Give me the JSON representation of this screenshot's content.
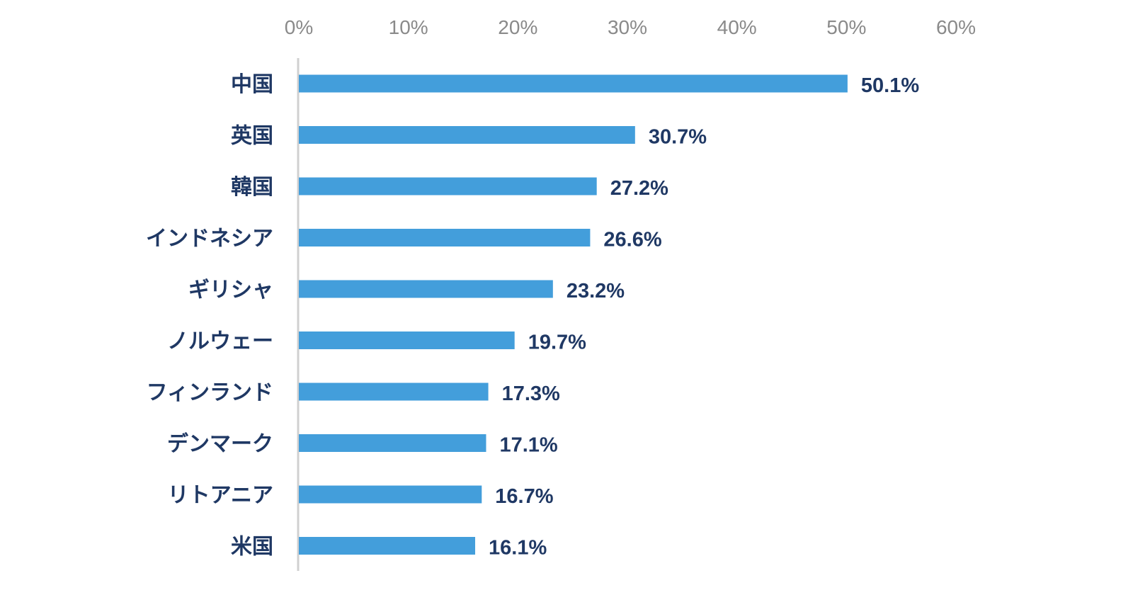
{
  "chart_data": {
    "type": "bar",
    "orientation": "horizontal",
    "categories": [
      "中国",
      "英国",
      "韓国",
      "インドネシア",
      "ギリシャ",
      "ノルウェー",
      "フィンランド",
      "デンマーク",
      "リトアニア",
      "米国"
    ],
    "values": [
      50.1,
      30.7,
      27.2,
      26.6,
      23.2,
      19.7,
      17.3,
      17.1,
      16.7,
      16.1
    ],
    "value_labels": [
      "50.1%",
      "30.7%",
      "27.2%",
      "26.6%",
      "23.2%",
      "19.7%",
      "17.3%",
      "17.1%",
      "16.7%",
      "16.1%"
    ],
    "xlim": [
      0,
      60
    ],
    "x_ticks": [
      0,
      10,
      20,
      30,
      40,
      50,
      60
    ],
    "x_tick_labels": [
      "0%",
      "10%",
      "20%",
      "30%",
      "40%",
      "50%",
      "60%"
    ],
    "axis_position": "top",
    "grid": false,
    "legend": "none",
    "bar_color": "#439edb",
    "label_color": "#1f3864",
    "tick_color": "#8a8a8a",
    "axis_line_color": "#d0d0d0"
  }
}
